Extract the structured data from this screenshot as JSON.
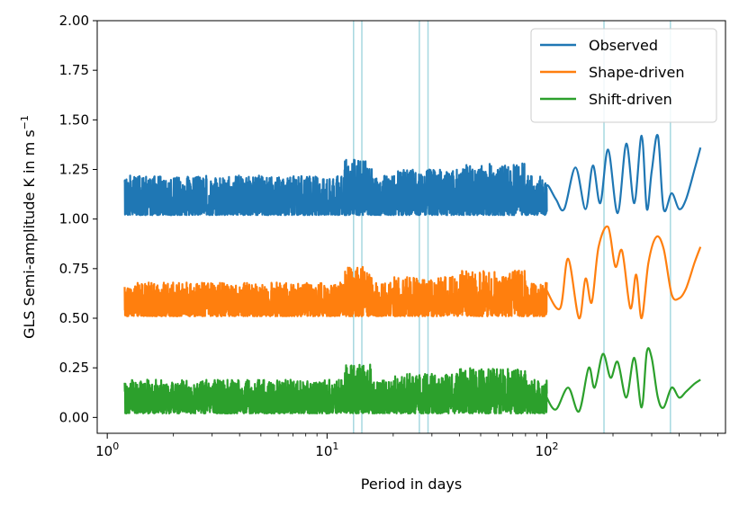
{
  "chart_data": {
    "type": "line",
    "xlabel": "Period in days",
    "ylabel_main": "GLS Semi-amplitude K in m s",
    "ylabel_sup": "−1",
    "x_scale": "log",
    "xlim": [
      0.9,
      650
    ],
    "ylim": [
      -0.08,
      2.0
    ],
    "x_ticks": [
      {
        "value": 1,
        "base": "10",
        "exp": "0"
      },
      {
        "value": 10,
        "base": "10",
        "exp": "1"
      },
      {
        "value": 100,
        "base": "10",
        "exp": "2"
      }
    ],
    "y_ticks": [
      0.0,
      0.25,
      0.5,
      0.75,
      1.0,
      1.25,
      1.5,
      1.75,
      2.0
    ],
    "y_tick_labels": [
      "0.00",
      "0.25",
      "0.50",
      "0.75",
      "1.00",
      "1.25",
      "1.50",
      "1.75",
      "2.00"
    ],
    "vertical_lines": [
      13.2,
      14.4,
      26.3,
      28.8,
      182,
      365
    ],
    "vertical_line_color": "#a6d8e0",
    "legend_position": "top-right",
    "grid": false,
    "series": [
      {
        "name": "Observed",
        "color": "#1f77b4",
        "noise_base": 1.02,
        "noise_amp": 0.2,
        "x": [
          100,
          110,
          120,
          135,
          150,
          162,
          175,
          190,
          210,
          230,
          250,
          270,
          285,
          300,
          320,
          340,
          370,
          400,
          430,
          470,
          500
        ],
        "y": [
          1.17,
          1.1,
          1.05,
          1.26,
          1.05,
          1.27,
          1.08,
          1.35,
          1.03,
          1.38,
          1.08,
          1.42,
          1.05,
          1.24,
          1.42,
          1.05,
          1.13,
          1.05,
          1.1,
          1.25,
          1.36
        ]
      },
      {
        "name": "Shape-driven",
        "color": "#ff7f0e",
        "noise_base": 0.51,
        "noise_amp": 0.17,
        "x": [
          100,
          115,
          125,
          140,
          150,
          160,
          172,
          190,
          205,
          220,
          240,
          255,
          270,
          290,
          315,
          340,
          370,
          400,
          430,
          470,
          500
        ],
        "y": [
          0.64,
          0.55,
          0.8,
          0.5,
          0.7,
          0.58,
          0.86,
          0.96,
          0.76,
          0.84,
          0.55,
          0.72,
          0.5,
          0.78,
          0.91,
          0.85,
          0.62,
          0.6,
          0.65,
          0.78,
          0.86
        ]
      },
      {
        "name": "Shift-driven",
        "color": "#2ca02c",
        "noise_base": 0.02,
        "noise_amp": 0.17,
        "x": [
          100,
          110,
          125,
          140,
          155,
          165,
          180,
          195,
          210,
          230,
          250,
          270,
          285,
          300,
          320,
          340,
          370,
          400,
          430,
          470,
          500
        ],
        "y": [
          0.1,
          0.04,
          0.15,
          0.03,
          0.25,
          0.15,
          0.32,
          0.2,
          0.28,
          0.1,
          0.3,
          0.05,
          0.33,
          0.3,
          0.1,
          0.05,
          0.15,
          0.1,
          0.13,
          0.17,
          0.19
        ]
      }
    ]
  }
}
